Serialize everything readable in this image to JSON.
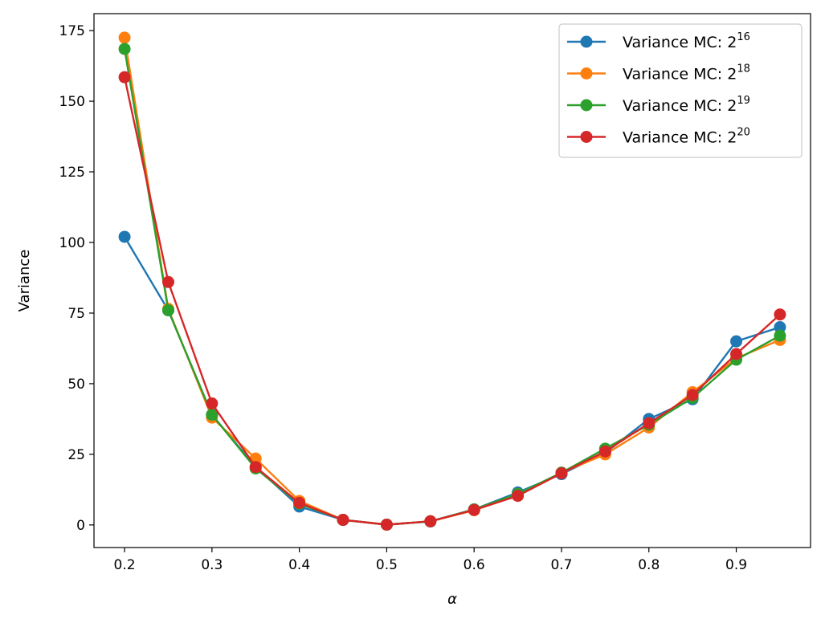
{
  "chart_data": {
    "type": "line",
    "title": "",
    "xlabel": "α",
    "ylabel": "Variance",
    "xlim": [
      0.165,
      0.985
    ],
    "ylim": [
      -8,
      181
    ],
    "x": [
      0.2,
      0.25,
      0.3,
      0.35,
      0.4,
      0.45,
      0.5,
      0.55,
      0.6,
      0.65,
      0.7,
      0.75,
      0.8,
      0.85,
      0.9,
      0.95
    ],
    "xticks": [
      "0.2",
      "0.3",
      "0.4",
      "0.5",
      "0.6",
      "0.7",
      "0.8",
      "0.9"
    ],
    "xtick_values": [
      0.2,
      0.3,
      0.4,
      0.5,
      0.6,
      0.7,
      0.8,
      0.9
    ],
    "yticks": [
      "0",
      "25",
      "50",
      "75",
      "100",
      "125",
      "150",
      "175"
    ],
    "ytick_values": [
      0,
      25,
      50,
      75,
      100,
      125,
      150,
      175
    ],
    "grid": false,
    "legend_position": "top-right",
    "series": [
      {
        "name": "Variance MC: 2",
        "exponent": "16",
        "color": "#1f77b4",
        "values": [
          102,
          76,
          39,
          20.5,
          6.5,
          1.8,
          0.1,
          1.2,
          5.5,
          11.5,
          18,
          25.5,
          37.5,
          44.5,
          65,
          70
        ]
      },
      {
        "name": "Variance MC: 2",
        "exponent": "18",
        "color": "#ff7f0e",
        "values": [
          172.5,
          76.5,
          38,
          23.5,
          8.5,
          1.8,
          0.1,
          1.3,
          5.2,
          10.5,
          18.5,
          25,
          34.5,
          47,
          59,
          65.5
        ]
      },
      {
        "name": "Variance MC: 2",
        "exponent": "19",
        "color": "#2ca02c",
        "values": [
          168.5,
          76,
          39,
          20,
          7.5,
          1.8,
          0.1,
          1.3,
          5.5,
          11,
          18.5,
          27,
          35.5,
          45,
          58.5,
          67
        ]
      },
      {
        "name": "Variance MC: 2",
        "exponent": "20",
        "color": "#d62728",
        "values": [
          158.5,
          86,
          43,
          20.5,
          7.8,
          1.8,
          0.1,
          1.3,
          5.3,
          10.3,
          18.3,
          26,
          36,
          46,
          60.5,
          74.5
        ]
      }
    ]
  }
}
